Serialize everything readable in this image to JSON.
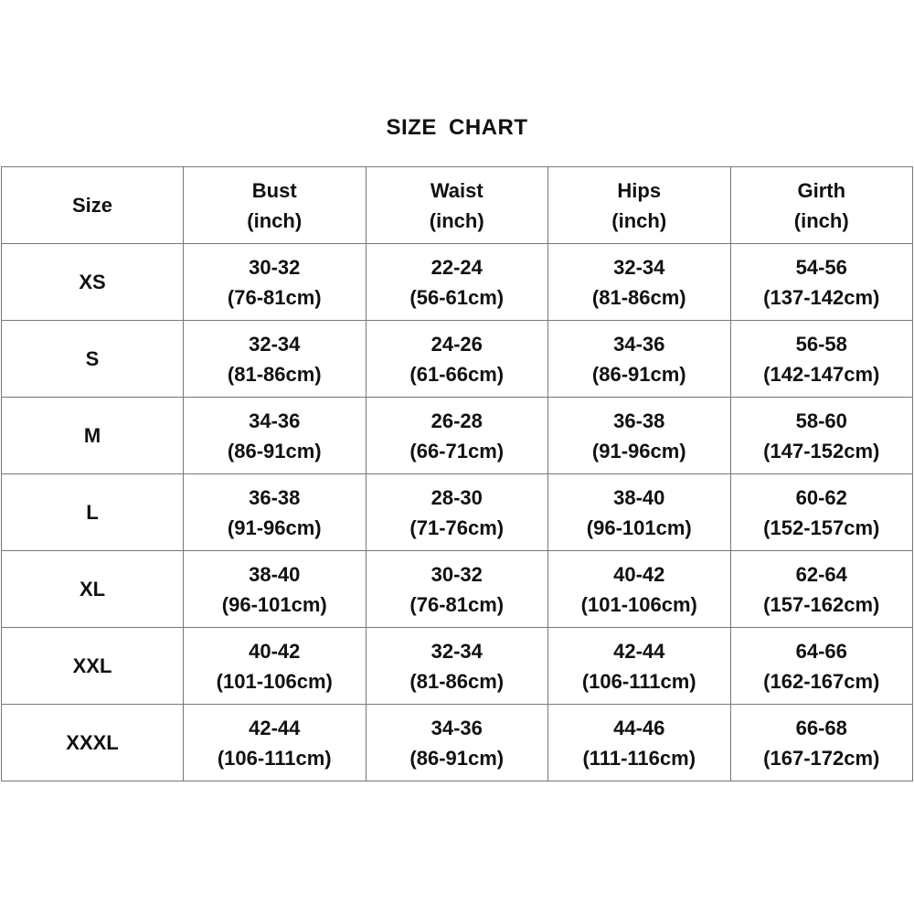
{
  "title": "SIZE  CHART",
  "headers": [
    {
      "line1": "Size",
      "line2": ""
    },
    {
      "line1": "Bust",
      "line2": "(inch)"
    },
    {
      "line1": "Waist",
      "line2": "(inch)"
    },
    {
      "line1": "Hips",
      "line2": "(inch)"
    },
    {
      "line1": "Girth",
      "line2": "(inch)"
    }
  ],
  "rows": [
    {
      "size": "XS",
      "cells": [
        [
          "30-32",
          "(76-81cm)"
        ],
        [
          "22-24",
          "(56-61cm)"
        ],
        [
          "32-34",
          "(81-86cm)"
        ],
        [
          "54-56",
          "(137-142cm)"
        ]
      ]
    },
    {
      "size": "S",
      "cells": [
        [
          "32-34",
          "(81-86cm)"
        ],
        [
          "24-26",
          "(61-66cm)"
        ],
        [
          "34-36",
          "(86-91cm)"
        ],
        [
          "56-58",
          "(142-147cm)"
        ]
      ]
    },
    {
      "size": "M",
      "cells": [
        [
          "34-36",
          "(86-91cm)"
        ],
        [
          "26-28",
          "(66-71cm)"
        ],
        [
          "36-38",
          "(91-96cm)"
        ],
        [
          "58-60",
          "(147-152cm)"
        ]
      ]
    },
    {
      "size": "L",
      "cells": [
        [
          "36-38",
          "(91-96cm)"
        ],
        [
          "28-30",
          "(71-76cm)"
        ],
        [
          "38-40",
          "(96-101cm)"
        ],
        [
          "60-62",
          "(152-157cm)"
        ]
      ]
    },
    {
      "size": "XL",
      "cells": [
        [
          "38-40",
          "(96-101cm)"
        ],
        [
          "30-32",
          "(76-81cm)"
        ],
        [
          "40-42",
          "(101-106cm)"
        ],
        [
          "62-64",
          "(157-162cm)"
        ]
      ]
    },
    {
      "size": "XXL",
      "cells": [
        [
          "40-42",
          "(101-106cm)"
        ],
        [
          "32-34",
          "(81-86cm)"
        ],
        [
          "42-44",
          "(106-111cm)"
        ],
        [
          "64-66",
          "(162-167cm)"
        ]
      ]
    },
    {
      "size": "XXXL",
      "cells": [
        [
          "42-44",
          "(106-111cm)"
        ],
        [
          "34-36",
          "(86-91cm)"
        ],
        [
          "44-46",
          "(111-116cm)"
        ],
        [
          "66-68",
          "(167-172cm)"
        ]
      ]
    }
  ]
}
